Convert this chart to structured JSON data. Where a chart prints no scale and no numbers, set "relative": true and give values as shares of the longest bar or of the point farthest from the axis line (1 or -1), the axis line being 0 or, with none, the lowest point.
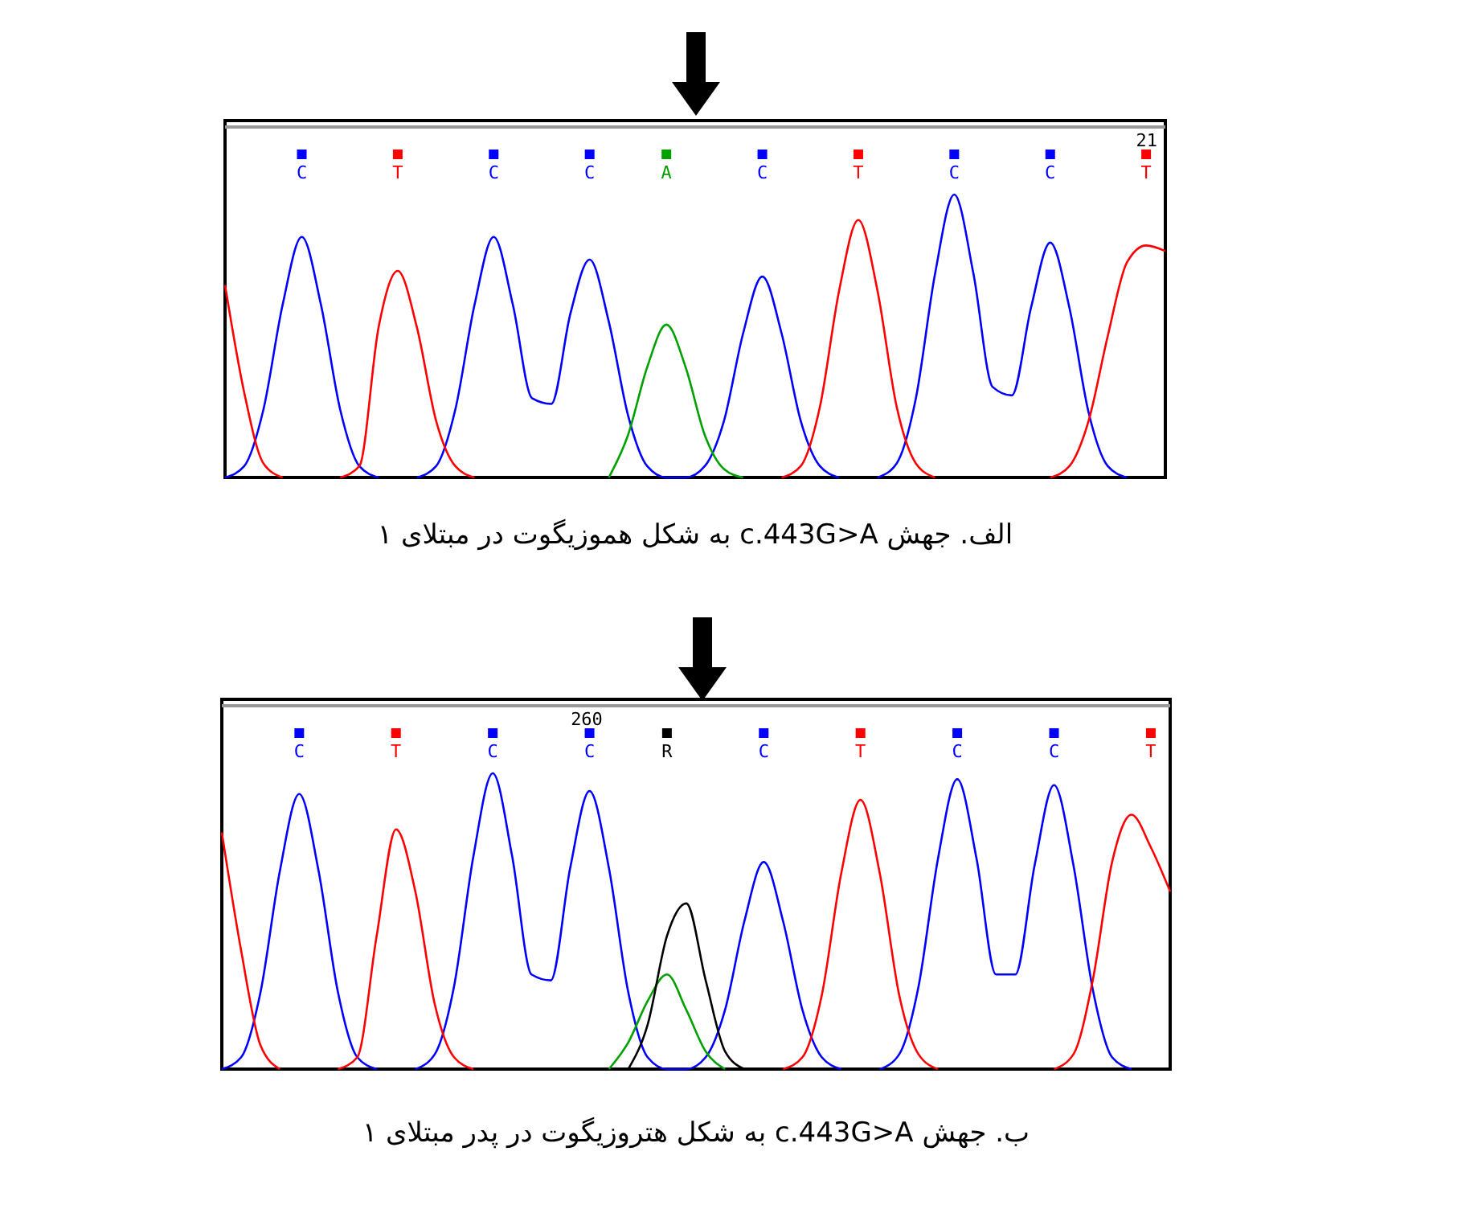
{
  "chart_data": [
    {
      "type": "line",
      "relative": true,
      "title": "الف. جهش c.443G>A به شکل هموزیگوت در مبتلای ۱",
      "annotations": [
        "21"
      ],
      "categories": [
        null,
        null,
        null,
        null,
        "C",
        null,
        null,
        null,
        null,
        "T",
        null,
        null,
        null,
        null,
        "C",
        null,
        null,
        null,
        null,
        "C",
        null,
        null,
        null,
        "A",
        null,
        null,
        null,
        null,
        "C",
        null,
        null,
        null,
        null,
        "T",
        null,
        null,
        null,
        null,
        "C",
        null,
        null,
        null,
        null,
        "C",
        null,
        null,
        null,
        null,
        "T",
        null
      ],
      "series": [
        {
          "color": "#0000ff",
          "values": [
            0,
            0.04,
            0.24,
            0.61,
            0.85,
            0.61,
            0.24,
            0.04,
            0,
            null,
            0,
            0.04,
            0.24,
            0.61,
            0.85,
            0.61,
            0.28,
            0.26,
            0.58,
            0.77,
            0.55,
            0.22,
            0.04,
            0,
            0,
            0.04,
            0.2,
            0.51,
            0.71,
            0.51,
            0.2,
            0.04,
            0,
            null,
            0,
            0.05,
            0.28,
            0.72,
            1,
            0.72,
            0.32,
            0.29,
            0.6,
            0.83,
            0.6,
            0.23,
            0.04,
            0,
            null,
            null
          ]
        },
        {
          "color": "#ff0000",
          "values": [
            0.68,
            0.3,
            0.05,
            0,
            null,
            null,
            0,
            0.04,
            0.53,
            0.73,
            0.53,
            0.2,
            0.04,
            0,
            null,
            null,
            null,
            null,
            null,
            null,
            null,
            null,
            null,
            null,
            null,
            null,
            null,
            null,
            null,
            0,
            0.04,
            0.25,
            0.66,
            0.91,
            0.66,
            0.25,
            0.05,
            0,
            null,
            null,
            null,
            null,
            null,
            0,
            0.04,
            0.2,
            0.5,
            0.76,
            0.82,
            0.8
          ]
        },
        {
          "color": "#00a000",
          "values": [
            null,
            null,
            null,
            null,
            null,
            null,
            null,
            null,
            null,
            null,
            null,
            null,
            null,
            null,
            null,
            null,
            null,
            null,
            null,
            null,
            0,
            0.15,
            0.39,
            0.54,
            0.39,
            0.15,
            0.03,
            0,
            null,
            null,
            null,
            null,
            null,
            null,
            null,
            null,
            null,
            null,
            null,
            null,
            null,
            null,
            null,
            null,
            null,
            null,
            null,
            null,
            null,
            null
          ]
        }
      ]
    },
    {
      "type": "line",
      "relative": true,
      "title": "ب. جهش c.443G>A به شکل هتروزیگوت در پدر مبتلای ۱",
      "annotations": [
        "260"
      ],
      "categories": [
        null,
        null,
        null,
        null,
        "C",
        null,
        null,
        null,
        null,
        "T",
        null,
        null,
        null,
        null,
        "C",
        null,
        null,
        null,
        null,
        "C",
        null,
        null,
        null,
        "R",
        null,
        null,
        null,
        null,
        "C",
        null,
        null,
        null,
        null,
        "T",
        null,
        null,
        null,
        null,
        "C",
        null,
        null,
        null,
        null,
        "C",
        null,
        null,
        null,
        null,
        "T",
        null
      ],
      "series": [
        {
          "color": "#0000ff",
          "values": [
            0,
            0.04,
            0.26,
            0.67,
            0.93,
            0.67,
            0.26,
            0.04,
            0,
            null,
            0,
            0.05,
            0.28,
            0.72,
            1,
            0.72,
            0.32,
            0.3,
            0.68,
            0.94,
            0.68,
            0.26,
            0.04,
            0,
            0,
            0.04,
            0.2,
            0.5,
            0.7,
            0.5,
            0.2,
            0.04,
            0,
            null,
            0,
            0.05,
            0.28,
            0.71,
            0.98,
            0.71,
            0.32,
            0.32,
            0.69,
            0.96,
            0.69,
            0.27,
            0.04,
            0,
            null,
            null
          ]
        },
        {
          "color": "#ff0000",
          "values": [
            0.8,
            0.4,
            0.08,
            0,
            null,
            null,
            0,
            0.04,
            0.45,
            0.81,
            0.6,
            0.22,
            0.04,
            0,
            null,
            null,
            null,
            null,
            null,
            null,
            null,
            null,
            null,
            null,
            null,
            null,
            null,
            null,
            null,
            0,
            0.04,
            0.25,
            0.66,
            0.91,
            0.66,
            0.25,
            0.05,
            0,
            null,
            null,
            null,
            null,
            null,
            0,
            0.05,
            0.3,
            0.7,
            0.86,
            0.75,
            0.6
          ]
        },
        {
          "color": "#00a000",
          "values": [
            null,
            null,
            null,
            null,
            null,
            null,
            null,
            null,
            null,
            null,
            null,
            null,
            null,
            null,
            null,
            null,
            null,
            null,
            null,
            null,
            0,
            0.09,
            0.23,
            0.32,
            0.2,
            0.06,
            0,
            null,
            null,
            null,
            null,
            null,
            null,
            null,
            null,
            null,
            null,
            null,
            null,
            null,
            null,
            null,
            null,
            null,
            null,
            null,
            null,
            null,
            null,
            null
          ]
        },
        {
          "color": "#000000",
          "values": [
            null,
            null,
            null,
            null,
            null,
            null,
            null,
            null,
            null,
            null,
            null,
            null,
            null,
            null,
            null,
            null,
            null,
            null,
            null,
            null,
            null,
            0,
            0.15,
            0.45,
            0.56,
            0.3,
            0.06,
            0,
            null,
            null,
            null,
            null,
            null,
            null,
            null,
            null,
            null,
            null,
            null,
            null,
            null,
            null,
            null,
            null,
            null,
            null,
            null,
            null,
            null,
            null
          ]
        }
      ]
    }
  ]
}
